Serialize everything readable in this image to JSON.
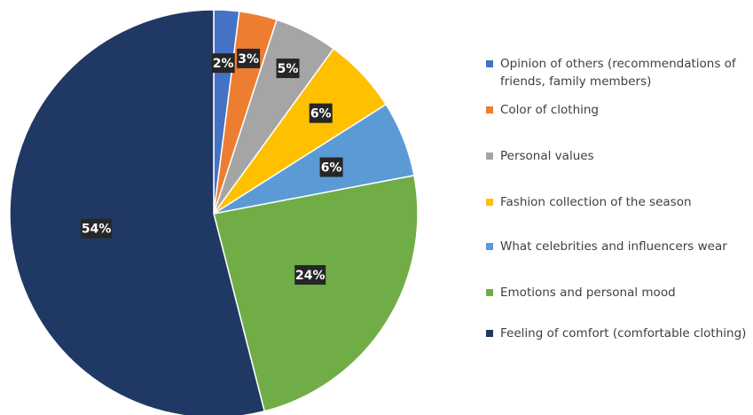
{
  "chart_data": {
    "type": "pie",
    "slices": [
      {
        "label": "Opinion of others (recommendations of friends, family members)",
        "value": 2,
        "data_label": "2%",
        "color": "#4472c4"
      },
      {
        "label": "Color of clothing",
        "value": 3,
        "data_label": "3%",
        "color": "#ed7d31"
      },
      {
        "label": "Personal values",
        "value": 5,
        "data_label": "5%",
        "color": "#a5a5a5"
      },
      {
        "label": "Fashion collection of the season",
        "value": 6,
        "data_label": "6%",
        "color": "#ffc000"
      },
      {
        "label": "What celebrities and influencers wear",
        "value": 6,
        "data_label": "6%",
        "color": "#5b9bd5"
      },
      {
        "label": "Emotions and personal mood",
        "value": 24,
        "data_label": "24%",
        "color": "#70ad47"
      },
      {
        "label": "Feeling of comfort (comfortable clothing)",
        "value": 54,
        "data_label": "54%",
        "color": "#203864"
      }
    ],
    "legend_position": "right",
    "start_angle": "12 o'clock",
    "direction": "clockwise",
    "label_style": "white bold text on dark box"
  }
}
